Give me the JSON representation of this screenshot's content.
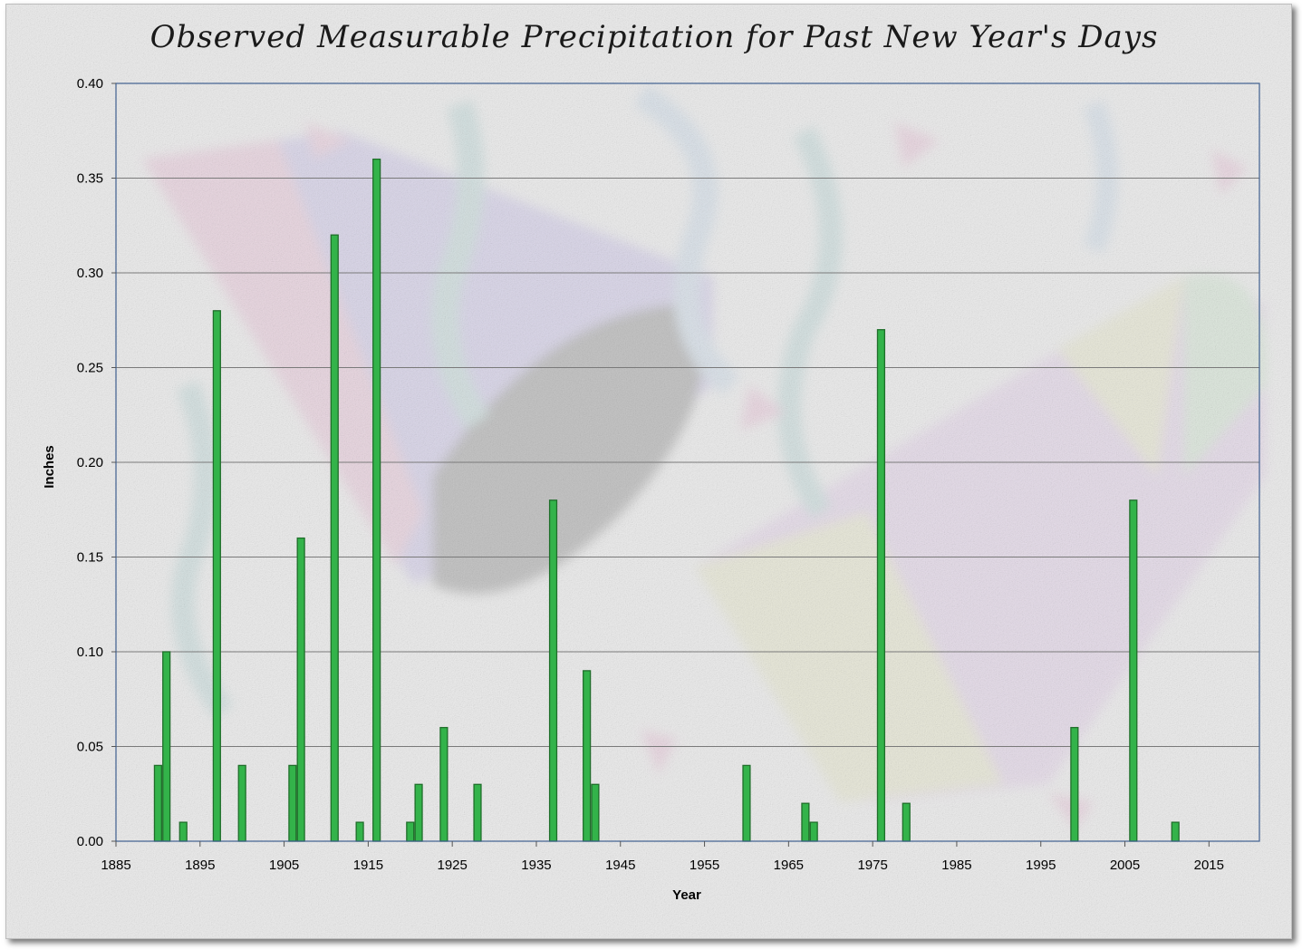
{
  "chart_data": {
    "type": "bar",
    "title": "Observed Measurable Precipitation for Past New Year's Days",
    "xlabel": "Year",
    "ylabel": "Inches",
    "xlim": [
      1885,
      2021
    ],
    "ylim": [
      0,
      0.4
    ],
    "xticks": [
      "1885",
      "1895",
      "1905",
      "1915",
      "1925",
      "1935",
      "1945",
      "1955",
      "1965",
      "1975",
      "1985",
      "1995",
      "2005",
      "2015"
    ],
    "yticks": [
      "0.00",
      "0.05",
      "0.10",
      "0.15",
      "0.20",
      "0.25",
      "0.30",
      "0.35",
      "0.40"
    ],
    "grid": "horizontal",
    "legend": "none",
    "bar_color": "#33b34a",
    "bar_edge_color": "#1f6e2a",
    "points": [
      {
        "x": 1890,
        "y": 0.04
      },
      {
        "x": 1891,
        "y": 0.1
      },
      {
        "x": 1893,
        "y": 0.01
      },
      {
        "x": 1897,
        "y": 0.28
      },
      {
        "x": 1900,
        "y": 0.04
      },
      {
        "x": 1906,
        "y": 0.04
      },
      {
        "x": 1907,
        "y": 0.16
      },
      {
        "x": 1911,
        "y": 0.32
      },
      {
        "x": 1914,
        "y": 0.01
      },
      {
        "x": 1916,
        "y": 0.36
      },
      {
        "x": 1920,
        "y": 0.01
      },
      {
        "x": 1921,
        "y": 0.03
      },
      {
        "x": 1924,
        "y": 0.06
      },
      {
        "x": 1928,
        "y": 0.03
      },
      {
        "x": 1937,
        "y": 0.18
      },
      {
        "x": 1941,
        "y": 0.09
      },
      {
        "x": 1942,
        "y": 0.03
      },
      {
        "x": 1960,
        "y": 0.04
      },
      {
        "x": 1967,
        "y": 0.02
      },
      {
        "x": 1968,
        "y": 0.01
      },
      {
        "x": 1976,
        "y": 0.27
      },
      {
        "x": 1979,
        "y": 0.02
      },
      {
        "x": 1999,
        "y": 0.06
      },
      {
        "x": 2006,
        "y": 0.18
      },
      {
        "x": 2011,
        "y": 0.01
      }
    ]
  }
}
